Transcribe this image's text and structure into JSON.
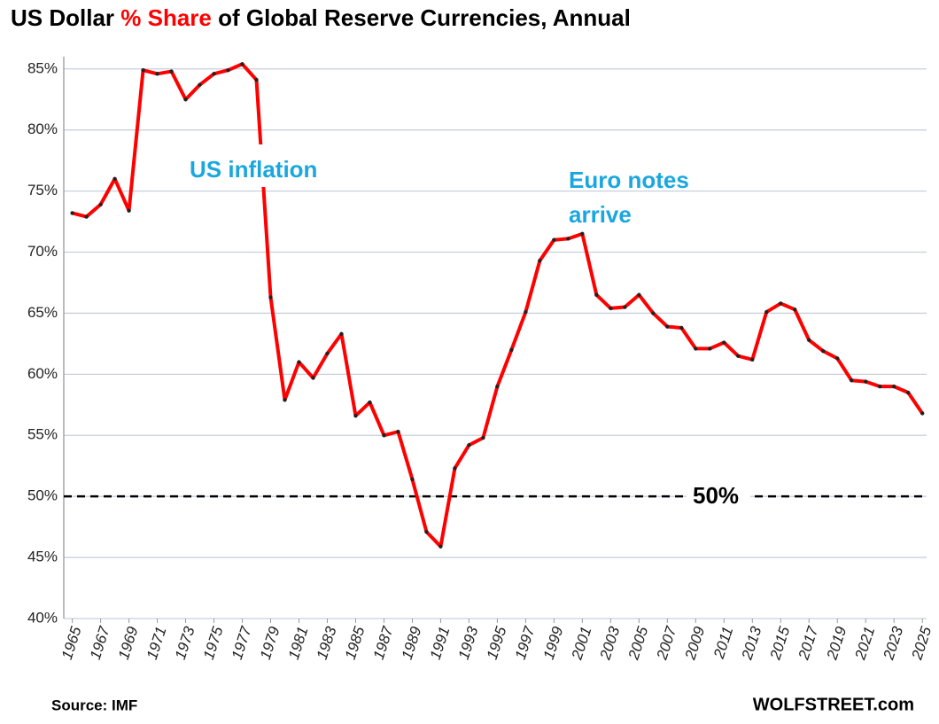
{
  "chart_data": {
    "type": "line",
    "title": [
      "US Dollar",
      "% Share",
      "of Global Reserve Currencies, Annual"
    ],
    "x": [
      1965,
      1966,
      1967,
      1968,
      1969,
      1970,
      1971,
      1972,
      1973,
      1974,
      1975,
      1976,
      1977,
      1978,
      1979,
      1980,
      1981,
      1982,
      1983,
      1984,
      1985,
      1986,
      1987,
      1988,
      1989,
      1990,
      1991,
      1992,
      1993,
      1994,
      1995,
      1996,
      1997,
      1998,
      1999,
      2000,
      2001,
      2002,
      2003,
      2004,
      2005,
      2006,
      2007,
      2008,
      2009,
      2010,
      2011,
      2012,
      2013,
      2014,
      2015,
      2016,
      2017,
      2018,
      2019,
      2020,
      2021,
      2022,
      2023,
      2024,
      2025
    ],
    "series": [
      {
        "color": "#ff0000",
        "marker_color": "#222222",
        "values": [
          73.2,
          72.9,
          73.9,
          76.0,
          73.4,
          84.9,
          84.6,
          84.8,
          82.5,
          83.7,
          84.6,
          84.9,
          85.4,
          84.1,
          66.3,
          57.9,
          61.0,
          59.7,
          61.7,
          63.3,
          56.6,
          57.7,
          55.0,
          55.3,
          51.4,
          47.1,
          45.9,
          52.3,
          54.2,
          54.8,
          59.0,
          62.0,
          65.1,
          69.3,
          71.0,
          71.1,
          71.5,
          66.5,
          65.4,
          65.5,
          66.5,
          65.0,
          63.9,
          63.8,
          62.1,
          62.1,
          62.6,
          61.5,
          61.2,
          65.1,
          65.8,
          65.3,
          62.8,
          61.9,
          61.3,
          59.5,
          59.4,
          59.0,
          59.0,
          58.5,
          56.8
        ]
      }
    ],
    "xlim": [
      1964.4,
      2025.3
    ],
    "xticks": [
      1965,
      1967,
      1969,
      1971,
      1973,
      1975,
      1977,
      1979,
      1981,
      1983,
      1985,
      1987,
      1989,
      1991,
      1993,
      1995,
      1997,
      1999,
      2001,
      2003,
      2005,
      2007,
      2009,
      2011,
      2013,
      2015,
      2017,
      2019,
      2021,
      2023,
      2025
    ],
    "ylim": [
      40,
      86
    ],
    "yticks": [
      {
        "value": 40,
        "label": "40%"
      },
      {
        "value": 45,
        "label": "45%"
      },
      {
        "value": 50,
        "label": "50%"
      },
      {
        "value": 55,
        "label": "55%"
      },
      {
        "value": 60,
        "label": "60%"
      },
      {
        "value": 65,
        "label": "65%"
      },
      {
        "value": 70,
        "label": "70%"
      },
      {
        "value": 75,
        "label": "75%"
      },
      {
        "value": 80,
        "label": "80%"
      },
      {
        "value": 85,
        "label": "85%"
      }
    ],
    "grid": true,
    "reference_line": {
      "value": 50,
      "label": "50%"
    },
    "annotations": [
      {
        "lines": [
          "US inflation"
        ]
      },
      {
        "lines": [
          "Euro notes",
          "arrive"
        ]
      }
    ],
    "source": "Source: IMF",
    "credit": "WOLFSTREET.com"
  }
}
